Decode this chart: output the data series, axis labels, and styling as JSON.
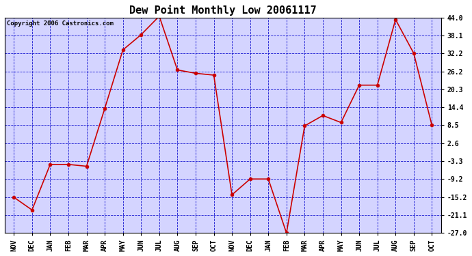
{
  "title": "Dew Point Monthly Low 20061117",
  "copyright": "Copyright 2006 Castronics.com",
  "x_labels": [
    "NOV",
    "DEC",
    "JAN",
    "FEB",
    "MAR",
    "APR",
    "MAY",
    "JUN",
    "JUL",
    "AUG",
    "SEP",
    "OCT",
    "NOV",
    "DEC",
    "JAN",
    "FEB",
    "MAR",
    "APR",
    "MAY",
    "JUN",
    "JUL",
    "AUG",
    "SEP",
    "OCT"
  ],
  "y_values": [
    -15.2,
    -19.4,
    -4.4,
    -4.4,
    -5.0,
    14.0,
    33.3,
    38.3,
    44.4,
    26.7,
    25.6,
    25.0,
    -14.4,
    -9.2,
    -9.2,
    -27.0,
    8.3,
    11.7,
    9.4,
    21.7,
    21.7,
    43.3,
    32.2,
    8.5
  ],
  "ylim_min": -27.0,
  "ylim_max": 44.0,
  "ytick_values": [
    44.0,
    38.1,
    32.2,
    26.2,
    20.3,
    14.4,
    8.5,
    2.6,
    -3.3,
    -9.2,
    -15.2,
    -21.1,
    -27.0
  ],
  "line_color": "#cc0000",
  "marker_color": "#cc0000",
  "bg_color": "#ffffff",
  "plot_bg_color": "#d4d4ff",
  "grid_color": "#0000cc",
  "title_fontsize": 11,
  "tick_fontsize": 7,
  "copyright_fontsize": 6.5
}
